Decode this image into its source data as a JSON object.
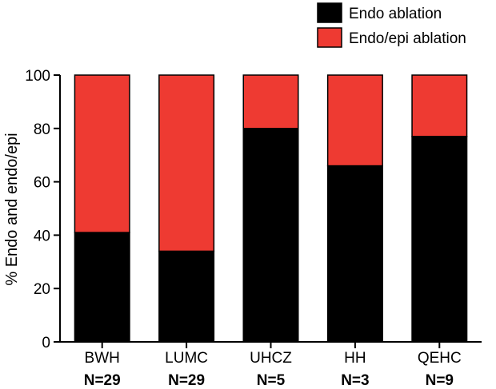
{
  "chart_data": {
    "type": "bar",
    "stacked": true,
    "title": "",
    "xlabel": "",
    "ylabel": "% Endo and endo/epi",
    "ylim": [
      0,
      100
    ],
    "yticks": [
      0,
      20,
      40,
      60,
      80,
      100
    ],
    "categories": [
      "BWH",
      "LUMC",
      "UHCZ",
      "HH",
      "QEHC"
    ],
    "sample_sizes": [
      "N=29",
      "N=29",
      "N=5",
      "N=3",
      "N=9"
    ],
    "legend_position": "top-right",
    "grid": false,
    "series": [
      {
        "name": "Endo ablation",
        "color": "#000000",
        "values": [
          41,
          34,
          80,
          66,
          77
        ]
      },
      {
        "name": "Endo/epi ablation",
        "color": "#ee3a32",
        "values": [
          59,
          66,
          20,
          34,
          23
        ]
      }
    ]
  }
}
